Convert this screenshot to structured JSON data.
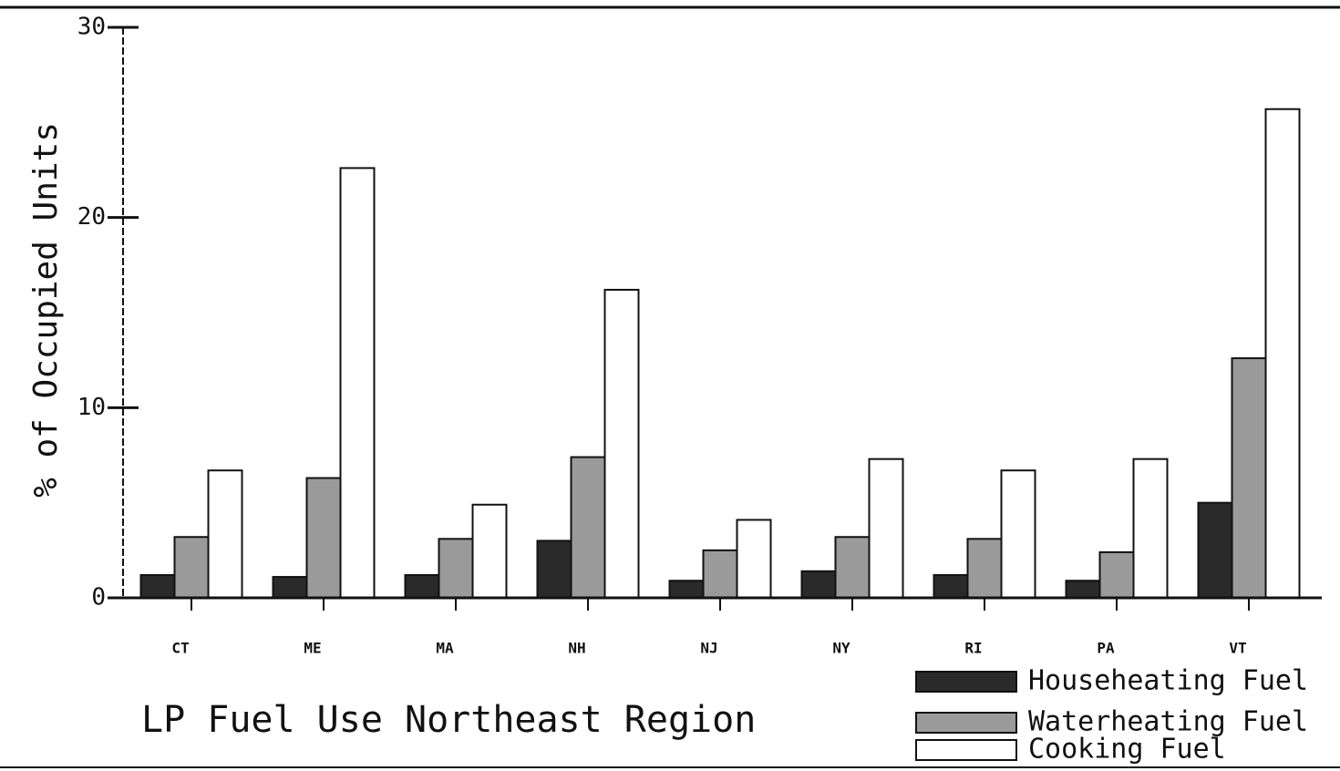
{
  "chart_data": {
    "type": "bar",
    "title": "LP Fuel Use Northeast  Region",
    "y_label": "% of Occupied Units",
    "categories": [
      "CT",
      "ME",
      "MA",
      "NH",
      "NJ",
      "NY",
      "RI",
      "PA",
      "VT"
    ],
    "series": [
      {
        "name": "Househeating Fuel",
        "color": "#2a2a2a",
        "values": [
          1.2,
          1.1,
          1.2,
          3.0,
          0.9,
          1.4,
          1.2,
          0.9,
          5.0
        ]
      },
      {
        "name": "Waterheating Fuel",
        "color": "#9a9a9a",
        "values": [
          3.2,
          6.3,
          3.1,
          7.4,
          2.5,
          3.2,
          3.1,
          2.4,
          12.6
        ]
      },
      {
        "name": "Cooking Fuel",
        "color": "#ffffff",
        "values": [
          6.7,
          22.6,
          4.9,
          16.2,
          4.1,
          7.3,
          6.7,
          7.3,
          25.7
        ]
      }
    ],
    "ylim": [
      0,
      30
    ],
    "yticks": [
      0,
      10,
      20,
      30
    ],
    "grid": false,
    "legend": "lower right"
  }
}
